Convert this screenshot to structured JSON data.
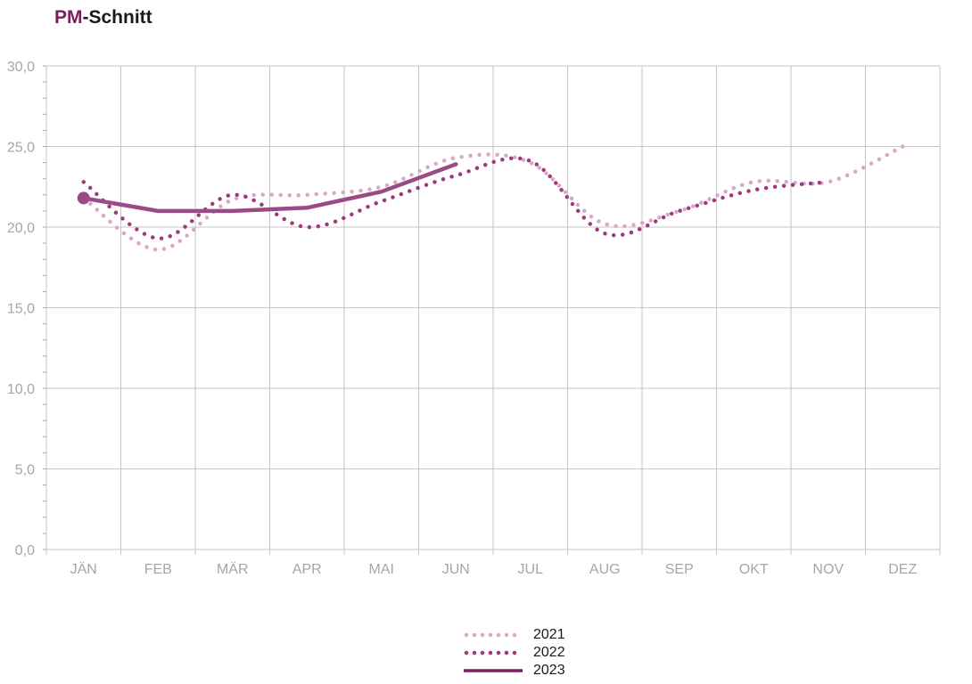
{
  "title": {
    "accent": "PM",
    "rest": "-Schnitt"
  },
  "colors": {
    "s2021": "#d9a7c7",
    "s2022": "#9c3b7c",
    "s2023": "#9a4a86",
    "grid": "#c6c6c6",
    "axis": "#a6a6a6",
    "title_accent": "#7a1f5c"
  },
  "chart_data": {
    "type": "line",
    "title": "PM-Schnitt",
    "xlabel": "",
    "ylabel": "",
    "categories": [
      "JÄN",
      "FEB",
      "MÄR",
      "APR",
      "MAI",
      "JUN",
      "JUL",
      "AUG",
      "SEP",
      "OKT",
      "NOV",
      "DEZ"
    ],
    "yticks": [
      "0,0",
      "5,0",
      "10,0",
      "15,0",
      "20,0",
      "25,0",
      "30,0"
    ],
    "ylim": [
      0,
      30
    ],
    "grid": true,
    "legend_position": "bottom-center",
    "series": [
      {
        "name": "2021",
        "style": "dotted-light",
        "values": [
          21.8,
          18.6,
          21.7,
          22.0,
          22.5,
          24.3,
          24.0,
          20.2,
          21.0,
          22.8,
          22.8,
          25.0
        ]
      },
      {
        "name": "2022",
        "style": "dotted-dark",
        "values": [
          22.8,
          19.3,
          22.0,
          20.0,
          21.6,
          23.2,
          24.1,
          19.6,
          21.0,
          22.3,
          22.8,
          null
        ]
      },
      {
        "name": "2023",
        "style": "solid",
        "values": [
          21.8,
          21.0,
          21.0,
          21.2,
          22.2,
          23.9,
          null,
          null,
          null,
          null,
          null,
          null
        ]
      }
    ]
  }
}
